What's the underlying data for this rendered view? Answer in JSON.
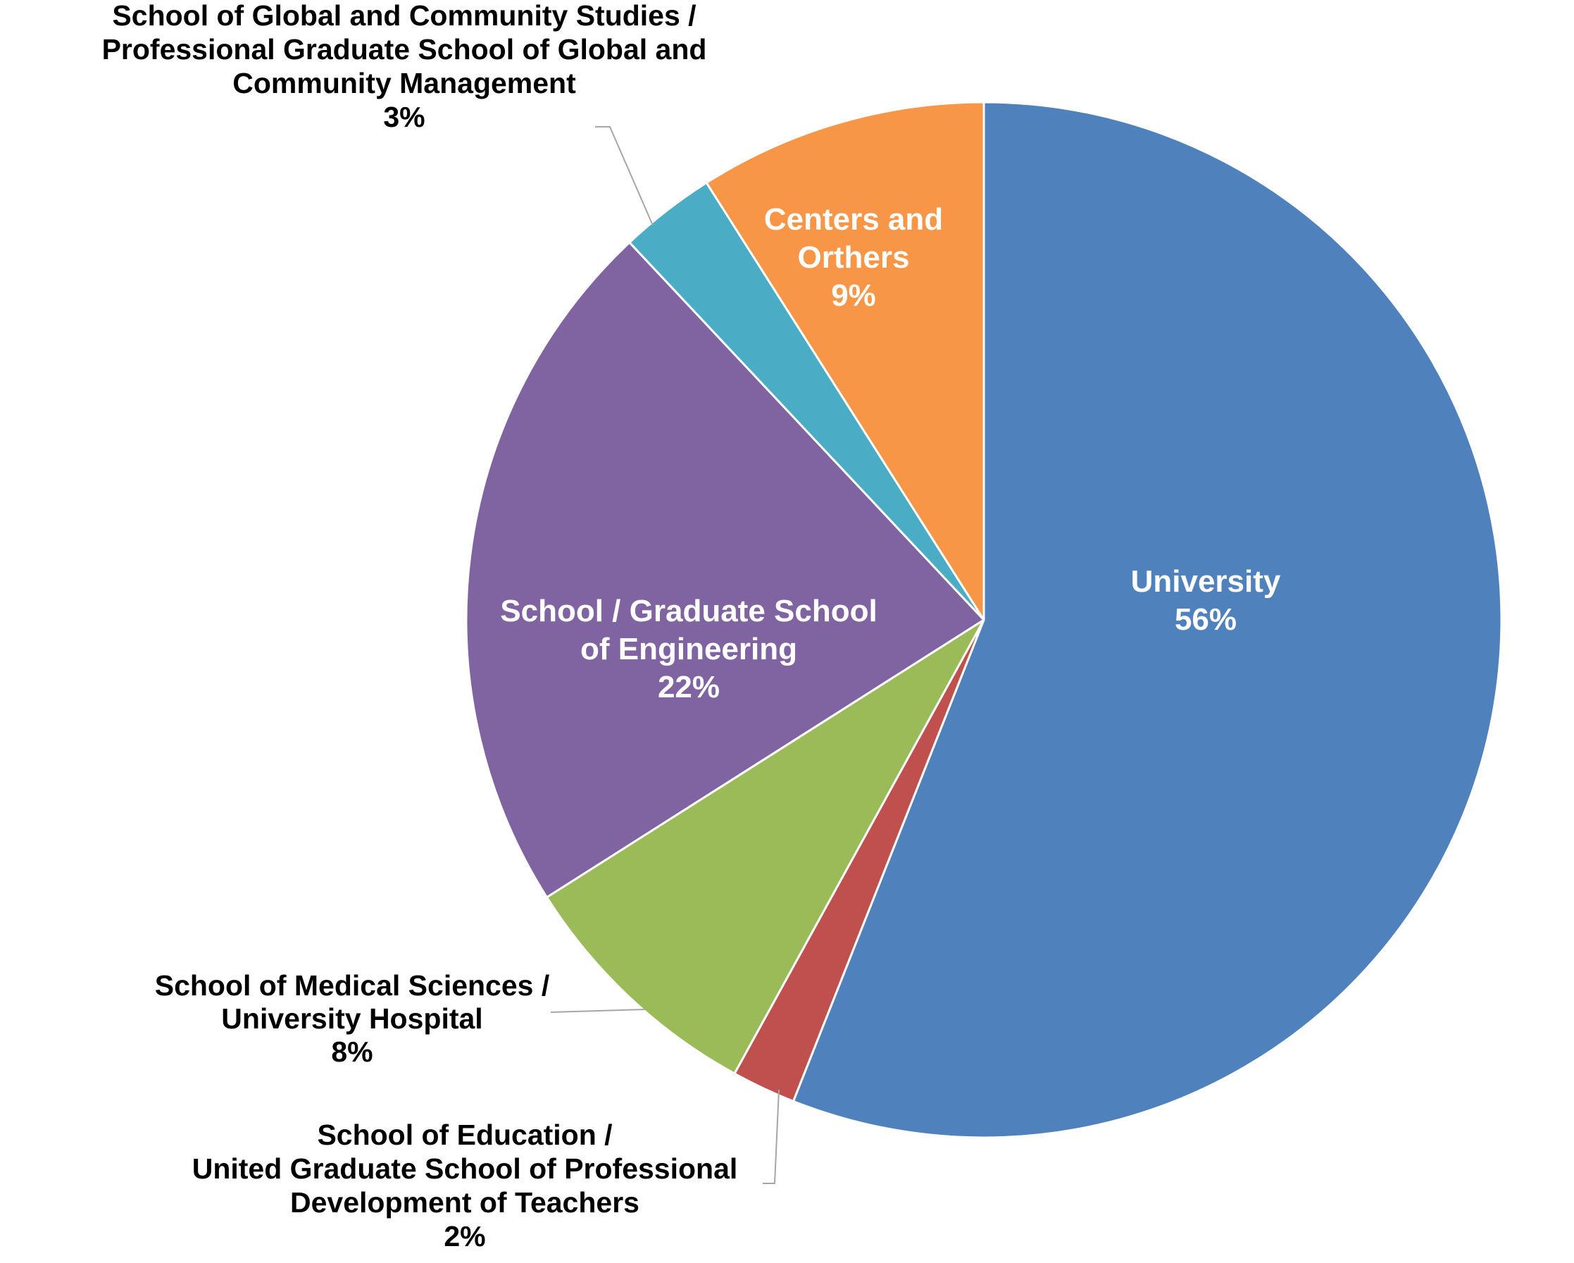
{
  "chart_data": {
    "type": "pie",
    "title": "",
    "start": "12 o'clock",
    "direction": "clockwise",
    "legend": "none",
    "series": [
      {
        "values": [
          56,
          2,
          8,
          22,
          3,
          9
        ],
        "slices": [
          {
            "name": "University",
            "value": 56,
            "color": "#4F81BD",
            "label_lines": [
              "University",
              "56%"
            ],
            "label_position": "inside"
          },
          {
            "name": "School of Education / United Graduate School of Professional Development of Teachers",
            "value": 2,
            "color": "#C0504D",
            "label_lines": [
              "School of Education /",
              "United Graduate School of Professional",
              "Development of Teachers",
              "2%"
            ],
            "label_position": "outside-bottom"
          },
          {
            "name": "School of Medical Sciences / University Hospital",
            "value": 8,
            "color": "#9BBB59",
            "label_lines": [
              "School of Medical Sciences /",
              "University Hospital",
              "8%"
            ],
            "label_position": "outside-left"
          },
          {
            "name": "School / Graduate School of Engineering",
            "value": 22,
            "color": "#8064A2",
            "label_lines": [
              "School / Graduate School",
              "of Engineering",
              "22%"
            ],
            "label_position": "inside"
          },
          {
            "name": "School of Global and Community Studies / Professional Graduate School of Global and Community Management",
            "value": 3,
            "color": "#4BACC6",
            "label_lines": [
              "School of Global and Community Studies /",
              "Professional Graduate School of Global and",
              "Community Management",
              "3%"
            ],
            "label_position": "outside-top"
          },
          {
            "name": "Centers and Orthers",
            "value": 9,
            "color": "#F79646",
            "label_lines": [
              "Centers and",
              "Orthers",
              "9%"
            ],
            "label_position": "inside"
          }
        ]
      }
    ],
    "leader_line_color": "#A6A6A6",
    "slice_border_color": "#FFFFFF"
  }
}
